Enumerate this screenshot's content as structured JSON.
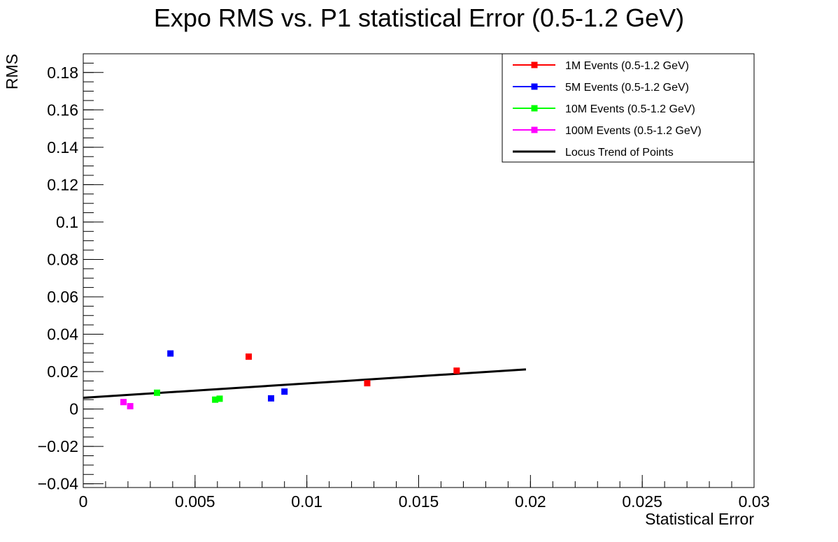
{
  "chart_data": {
    "type": "scatter",
    "title": "Expo RMS vs. P1 statistical Error (0.5-1.2 GeV)",
    "xlabel": "Statistical Error",
    "ylabel": "RMS",
    "xlim": [
      0,
      0.03
    ],
    "ylim": [
      -0.042,
      0.19
    ],
    "x_ticks": [
      {
        "value": 0,
        "label": "0"
      },
      {
        "value": 0.005,
        "label": "0.005"
      },
      {
        "value": 0.01,
        "label": "0.01"
      },
      {
        "value": 0.015,
        "label": "0.015"
      },
      {
        "value": 0.02,
        "label": "0.02"
      },
      {
        "value": 0.025,
        "label": "0.025"
      },
      {
        "value": 0.03,
        "label": "0.03"
      }
    ],
    "y_ticks": [
      {
        "value": -0.04,
        "label": "−0.04"
      },
      {
        "value": -0.02,
        "label": "−0.02"
      },
      {
        "value": 0,
        "label": "0"
      },
      {
        "value": 0.02,
        "label": "0.02"
      },
      {
        "value": 0.04,
        "label": "0.04"
      },
      {
        "value": 0.06,
        "label": "0.06"
      },
      {
        "value": 0.08,
        "label": "0.08"
      },
      {
        "value": 0.1,
        "label": "0.1"
      },
      {
        "value": 0.12,
        "label": "0.12"
      },
      {
        "value": 0.14,
        "label": "0.14"
      },
      {
        "value": 0.16,
        "label": "0.16"
      },
      {
        "value": 0.18,
        "label": "0.18"
      }
    ],
    "grid": false,
    "legend_position": "top-right",
    "series": [
      {
        "name": "1M Events (0.5-1.2 GeV)",
        "color": "#ff0000",
        "marker": "square",
        "points": [
          [
            0.0074,
            0.028
          ],
          [
            0.0127,
            0.0138
          ],
          [
            0.0167,
            0.0205
          ]
        ]
      },
      {
        "name": "5M Events (0.5-1.2 GeV)",
        "color": "#0000ff",
        "marker": "square",
        "points": [
          [
            0.0039,
            0.0297
          ],
          [
            0.0084,
            0.0057
          ],
          [
            0.009,
            0.0093
          ]
        ]
      },
      {
        "name": "10M Events (0.5-1.2 GeV)",
        "color": "#00ff00",
        "marker": "square",
        "points": [
          [
            0.0033,
            0.0087
          ],
          [
            0.0059,
            0.005
          ],
          [
            0.0061,
            0.0055
          ]
        ]
      },
      {
        "name": "100M Events (0.5-1.2 GeV)",
        "color": "#ff00ff",
        "marker": "square",
        "points": [
          [
            0.0018,
            0.0037
          ],
          [
            0.0021,
            0.0015
          ]
        ]
      }
    ],
    "trend": {
      "name": "Locus Trend of Points",
      "color": "#000000",
      "points": [
        [
          0.0,
          0.006
        ],
        [
          0.0198,
          0.0212
        ]
      ]
    }
  }
}
